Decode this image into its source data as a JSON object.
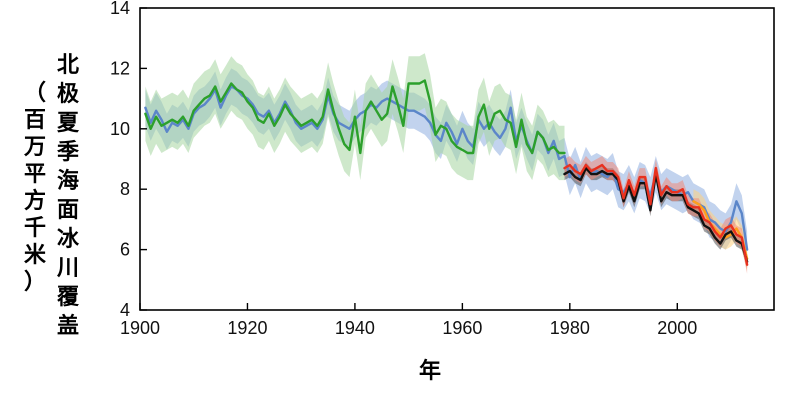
{
  "chart_data": {
    "type": "line",
    "title": "",
    "xlabel": "年",
    "ylabel_main": "北极夏季海面冰川覆盖",
    "ylabel_unit": "（百万平方千米）",
    "xlim": [
      1900,
      2018
    ],
    "ylim": [
      4,
      14
    ],
    "xticks": [
      1900,
      1920,
      1940,
      1960,
      1980,
      2000
    ],
    "yticks": [
      4,
      6,
      8,
      10,
      12,
      14
    ],
    "grid": false,
    "series": [
      {
        "color": "#5b86c9",
        "band_color": "#8faee0",
        "x": [
          1901,
          1902,
          1903,
          1904,
          1905,
          1906,
          1907,
          1908,
          1909,
          1910,
          1911,
          1912,
          1913,
          1914,
          1915,
          1916,
          1917,
          1918,
          1919,
          1920,
          1921,
          1922,
          1923,
          1924,
          1925,
          1926,
          1927,
          1928,
          1929,
          1930,
          1931,
          1932,
          1933,
          1934,
          1935,
          1936,
          1937,
          1938,
          1939,
          1940,
          1941,
          1942,
          1943,
          1944,
          1945,
          1946,
          1947,
          1948,
          1949,
          1950,
          1951,
          1952,
          1953,
          1954,
          1955,
          1956,
          1957,
          1958,
          1959,
          1960,
          1961,
          1962,
          1963,
          1964,
          1965,
          1966,
          1967,
          1968,
          1969,
          1970,
          1971,
          1972,
          1973,
          1974,
          1975,
          1976,
          1977,
          1978,
          1979,
          1980,
          1981,
          1982,
          1983,
          1984,
          1985,
          1986,
          1987,
          1988,
          1989,
          1990,
          1991,
          1992,
          1993,
          1994,
          1995,
          1996,
          1997,
          1998,
          1999,
          2000,
          2001,
          2002,
          2003,
          2004,
          2005,
          2006,
          2007,
          2008,
          2009,
          2010,
          2011,
          2012,
          2013
        ],
        "y": [
          10.7,
          10.2,
          10.6,
          10.3,
          9.9,
          10.2,
          10.1,
          10.3,
          10.0,
          10.5,
          10.7,
          10.8,
          11.0,
          11.3,
          10.7,
          11.1,
          11.4,
          11.3,
          11.1,
          11.0,
          10.8,
          10.5,
          10.4,
          10.6,
          10.2,
          10.5,
          10.9,
          10.6,
          10.2,
          10.0,
          10.1,
          10.2,
          10.0,
          10.3,
          11.1,
          10.5,
          10.2,
          10.1,
          10.0,
          10.3,
          10.5,
          10.6,
          10.8,
          10.7,
          10.9,
          11.0,
          10.9,
          10.8,
          10.7,
          10.6,
          10.6,
          10.5,
          10.4,
          10.2,
          9.8,
          9.6,
          10.2,
          9.9,
          9.5,
          10.0,
          9.6,
          9.4,
          10.3,
          10.0,
          10.2,
          9.9,
          9.7,
          10.0,
          10.7,
          9.6,
          10.1,
          9.6,
          9.2,
          9.9,
          9.7,
          9.2,
          9.6,
          9.0,
          9.1,
          8.4,
          8.8,
          8.3,
          8.8,
          8.5,
          8.6,
          8.5,
          8.4,
          8.6,
          8.0,
          7.9,
          8.2,
          7.8,
          8.3,
          8.2,
          7.8,
          8.5,
          7.9,
          8.1,
          8.0,
          7.9,
          7.8,
          7.9,
          7.6,
          7.5,
          7.4,
          7.0,
          6.9,
          6.7,
          6.6,
          6.9,
          7.6,
          7.2,
          6.0
        ],
        "lower": [
          10.1,
          9.6,
          10.0,
          9.7,
          9.3,
          9.6,
          9.5,
          9.7,
          9.4,
          9.9,
          10.1,
          10.2,
          10.4,
          10.7,
          10.1,
          10.5,
          10.8,
          10.7,
          10.5,
          10.4,
          10.2,
          9.9,
          9.8,
          10.0,
          9.6,
          9.9,
          10.3,
          10.0,
          9.6,
          9.4,
          9.5,
          9.6,
          9.4,
          9.7,
          10.5,
          9.9,
          9.6,
          9.5,
          9.4,
          9.7,
          9.9,
          10.0,
          10.2,
          10.1,
          10.3,
          10.4,
          10.3,
          10.2,
          10.1,
          10.0,
          10.0,
          9.9,
          9.8,
          9.6,
          9.2,
          9.0,
          9.6,
          9.3,
          8.9,
          9.4,
          9.0,
          8.8,
          9.7,
          9.4,
          9.6,
          9.3,
          9.1,
          9.4,
          10.1,
          9.0,
          9.5,
          9.0,
          8.6,
          9.3,
          9.1,
          8.6,
          9.0,
          8.4,
          8.5,
          7.8,
          8.2,
          7.7,
          8.2,
          7.9,
          8.0,
          7.9,
          7.8,
          8.0,
          7.4,
          7.3,
          7.6,
          7.2,
          7.7,
          7.6,
          7.2,
          7.9,
          7.3,
          7.5,
          7.4,
          7.3,
          7.2,
          7.3,
          7.0,
          6.9,
          6.8,
          6.4,
          6.3,
          6.1,
          6.0,
          6.3,
          7.0,
          6.6,
          5.4
        ],
        "upper": [
          11.3,
          10.8,
          11.2,
          10.9,
          10.5,
          10.8,
          10.7,
          10.9,
          10.6,
          11.1,
          11.3,
          11.4,
          11.6,
          11.9,
          11.3,
          11.7,
          12.0,
          11.9,
          11.7,
          11.6,
          11.4,
          11.1,
          11.0,
          11.2,
          10.8,
          11.1,
          11.5,
          11.2,
          10.8,
          10.6,
          10.7,
          10.8,
          10.6,
          10.9,
          11.7,
          11.1,
          10.8,
          10.7,
          10.6,
          10.9,
          11.1,
          11.2,
          11.4,
          11.3,
          11.5,
          11.6,
          11.5,
          11.4,
          11.3,
          11.2,
          11.2,
          11.1,
          11.0,
          10.8,
          10.4,
          10.2,
          10.8,
          10.5,
          10.1,
          10.6,
          10.2,
          10.0,
          10.9,
          10.6,
          10.8,
          10.5,
          10.3,
          10.6,
          11.3,
          10.2,
          10.7,
          10.2,
          9.8,
          10.5,
          10.3,
          9.8,
          10.2,
          9.6,
          9.7,
          9.0,
          9.4,
          8.9,
          9.4,
          9.1,
          9.2,
          9.1,
          9.0,
          9.2,
          8.6,
          8.5,
          8.8,
          8.4,
          8.9,
          8.8,
          8.4,
          9.1,
          8.5,
          8.7,
          8.6,
          8.5,
          8.4,
          8.5,
          8.2,
          8.1,
          8.0,
          7.6,
          7.5,
          7.3,
          7.2,
          7.5,
          8.2,
          7.8,
          6.6
        ]
      },
      {
        "color": "#2ca02c",
        "band_color": "#a5d6a0",
        "x": [
          1901,
          1902,
          1903,
          1904,
          1905,
          1906,
          1907,
          1908,
          1909,
          1910,
          1911,
          1912,
          1913,
          1914,
          1915,
          1916,
          1917,
          1918,
          1919,
          1920,
          1921,
          1922,
          1923,
          1924,
          1925,
          1926,
          1927,
          1928,
          1929,
          1930,
          1931,
          1932,
          1933,
          1934,
          1935,
          1936,
          1937,
          1938,
          1939,
          1940,
          1941,
          1942,
          1943,
          1944,
          1945,
          1946,
          1947,
          1948,
          1949,
          1950,
          1951,
          1952,
          1953,
          1954,
          1955,
          1956,
          1957,
          1958,
          1959,
          1960,
          1961,
          1962,
          1963,
          1964,
          1965,
          1966,
          1967,
          1968,
          1969,
          1970,
          1971,
          1972,
          1973,
          1974,
          1975,
          1976,
          1977,
          1978,
          1979
        ],
        "y": [
          10.5,
          10.0,
          10.4,
          10.1,
          10.2,
          10.3,
          10.2,
          10.4,
          10.1,
          10.6,
          10.8,
          11.0,
          11.1,
          11.4,
          10.9,
          11.2,
          11.5,
          11.3,
          11.2,
          10.9,
          10.7,
          10.3,
          10.2,
          10.5,
          10.1,
          10.4,
          10.8,
          10.5,
          10.3,
          10.1,
          10.2,
          10.3,
          10.1,
          10.4,
          11.3,
          10.6,
          10.0,
          9.5,
          9.3,
          10.4,
          9.2,
          10.6,
          10.9,
          10.6,
          10.3,
          10.5,
          11.4,
          10.8,
          10.1,
          11.5,
          11.5,
          11.5,
          11.6,
          10.9,
          9.8,
          10.1,
          10.0,
          9.6,
          9.4,
          9.3,
          9.2,
          9.2,
          10.4,
          10.8,
          10.0,
          10.5,
          10.6,
          10.3,
          10.2,
          9.4,
          10.3,
          9.5,
          9.2,
          9.9,
          9.7,
          9.3,
          9.4,
          9.2,
          9.2
        ],
        "lower": [
          9.6,
          9.1,
          9.5,
          9.2,
          9.3,
          9.4,
          9.3,
          9.5,
          9.2,
          9.7,
          9.9,
          10.1,
          10.2,
          10.5,
          10.0,
          10.3,
          10.6,
          10.4,
          10.3,
          10.0,
          9.8,
          9.4,
          9.3,
          9.6,
          9.2,
          9.5,
          9.9,
          9.6,
          9.4,
          9.2,
          9.3,
          9.4,
          9.2,
          9.5,
          10.4,
          9.7,
          9.1,
          8.6,
          8.4,
          9.5,
          8.3,
          9.7,
          10.0,
          9.7,
          9.4,
          9.6,
          10.5,
          9.9,
          9.2,
          10.6,
          10.6,
          10.6,
          10.7,
          10.0,
          8.9,
          9.2,
          9.1,
          8.7,
          8.5,
          8.4,
          8.3,
          8.3,
          9.5,
          9.9,
          9.1,
          9.6,
          9.7,
          9.4,
          9.3,
          8.5,
          9.4,
          8.6,
          8.3,
          9.0,
          8.8,
          8.4,
          8.5,
          8.3,
          8.3
        ],
        "upper": [
          11.4,
          10.9,
          11.3,
          11.0,
          11.1,
          11.2,
          11.1,
          11.3,
          11.0,
          11.5,
          11.7,
          11.9,
          12.0,
          12.3,
          11.8,
          12.1,
          12.4,
          12.2,
          12.1,
          11.8,
          11.6,
          11.2,
          11.1,
          11.4,
          11.0,
          11.3,
          11.7,
          11.4,
          11.2,
          11.0,
          11.1,
          11.2,
          11.0,
          11.3,
          12.2,
          11.5,
          10.9,
          10.4,
          10.2,
          11.3,
          10.1,
          11.5,
          11.8,
          11.5,
          11.2,
          11.4,
          12.3,
          11.7,
          11.0,
          12.4,
          12.4,
          12.4,
          12.5,
          11.8,
          10.7,
          11.0,
          10.9,
          10.5,
          10.3,
          10.2,
          10.1,
          10.1,
          11.3,
          11.7,
          10.9,
          11.4,
          11.5,
          11.2,
          11.1,
          10.3,
          11.2,
          10.4,
          10.1,
          10.8,
          10.6,
          10.2,
          10.3,
          10.1,
          10.1
        ]
      },
      {
        "color": "#ff9f1c",
        "band_color": "#ffd180",
        "x": [
          2003,
          2004,
          2005,
          2006,
          2007,
          2008,
          2009,
          2010,
          2011,
          2012,
          2013
        ],
        "y": [
          7.6,
          7.5,
          7.3,
          6.9,
          6.7,
          6.5,
          6.4,
          6.5,
          6.7,
          6.4,
          5.7
        ],
        "lower": [
          7.2,
          7.1,
          6.9,
          6.5,
          6.3,
          6.1,
          6.0,
          6.1,
          6.3,
          6.0,
          5.3
        ],
        "upper": [
          8.0,
          7.9,
          7.7,
          7.3,
          7.1,
          6.9,
          6.8,
          6.9,
          7.1,
          6.8,
          6.1
        ]
      },
      {
        "color": "#111111",
        "band_color": "#555555",
        "x": [
          1979,
          1980,
          1981,
          1982,
          1983,
          1984,
          1985,
          1986,
          1987,
          1988,
          1989,
          1990,
          1991,
          1992,
          1993,
          1994,
          1995,
          1996,
          1997,
          1998,
          1999,
          2000,
          2001,
          2002,
          2003,
          2004,
          2005,
          2006,
          2007,
          2008,
          2009,
          2010,
          2011,
          2012,
          2013
        ],
        "y": [
          8.5,
          8.6,
          8.4,
          8.3,
          8.7,
          8.5,
          8.5,
          8.6,
          8.5,
          8.5,
          8.3,
          7.6,
          8.1,
          7.6,
          8.2,
          8.2,
          7.3,
          8.5,
          7.6,
          7.9,
          7.8,
          7.8,
          7.8,
          7.4,
          7.3,
          7.2,
          6.8,
          6.7,
          6.4,
          6.2,
          6.5,
          6.6,
          6.3,
          6.2,
          5.6
        ],
        "lower": [
          8.3,
          8.4,
          8.2,
          8.1,
          8.5,
          8.3,
          8.3,
          8.4,
          8.3,
          8.3,
          8.1,
          7.4,
          7.9,
          7.4,
          8.0,
          8.0,
          7.1,
          8.3,
          7.4,
          7.7,
          7.6,
          7.6,
          7.6,
          7.2,
          7.1,
          7.0,
          6.6,
          6.5,
          6.2,
          6.0,
          6.3,
          6.4,
          6.1,
          6.0,
          5.4
        ],
        "upper": [
          8.7,
          8.8,
          8.6,
          8.5,
          8.9,
          8.7,
          8.7,
          8.8,
          8.7,
          8.7,
          8.5,
          7.8,
          8.3,
          7.8,
          8.4,
          8.4,
          7.5,
          8.7,
          7.8,
          8.1,
          8.0,
          8.0,
          8.0,
          7.6,
          7.5,
          7.4,
          7.0,
          6.9,
          6.6,
          6.4,
          6.7,
          6.8,
          6.5,
          6.4,
          5.8
        ]
      },
      {
        "color": "#e8311f",
        "band_color": "#f08a7a",
        "x": [
          1979,
          1980,
          1981,
          1982,
          1983,
          1984,
          1985,
          1986,
          1987,
          1988,
          1989,
          1990,
          1991,
          1992,
          1993,
          1994,
          1995,
          1996,
          1997,
          1998,
          1999,
          2000,
          2001,
          2002,
          2003,
          2004,
          2005,
          2006,
          2007,
          2008,
          2009,
          2010,
          2011,
          2012,
          2013
        ],
        "y": [
          8.7,
          8.8,
          8.6,
          8.5,
          8.8,
          8.6,
          8.7,
          8.8,
          8.6,
          8.6,
          8.4,
          7.7,
          8.3,
          7.8,
          8.4,
          8.4,
          7.5,
          8.7,
          7.8,
          8.1,
          7.9,
          7.9,
          8.0,
          7.5,
          7.4,
          7.4,
          7.0,
          6.9,
          6.6,
          6.4,
          6.7,
          6.8,
          6.5,
          6.4,
          5.5
        ],
        "lower": [
          8.4,
          8.5,
          8.3,
          8.2,
          8.5,
          8.3,
          8.4,
          8.5,
          8.3,
          8.3,
          8.1,
          7.4,
          8.0,
          7.5,
          8.1,
          8.1,
          7.2,
          8.4,
          7.5,
          7.8,
          7.6,
          7.6,
          7.7,
          7.2,
          7.1,
          7.1,
          6.7,
          6.6,
          6.3,
          6.1,
          6.4,
          6.5,
          6.2,
          6.1,
          5.2
        ],
        "upper": [
          9.0,
          9.1,
          8.9,
          8.8,
          9.1,
          8.9,
          9.0,
          9.1,
          8.9,
          8.9,
          8.7,
          8.0,
          8.6,
          8.1,
          8.7,
          8.7,
          7.8,
          9.0,
          8.1,
          8.4,
          8.2,
          8.2,
          8.3,
          7.8,
          7.7,
          7.7,
          7.3,
          7.2,
          6.9,
          6.7,
          7.0,
          7.1,
          6.8,
          6.7,
          5.8
        ]
      }
    ]
  }
}
